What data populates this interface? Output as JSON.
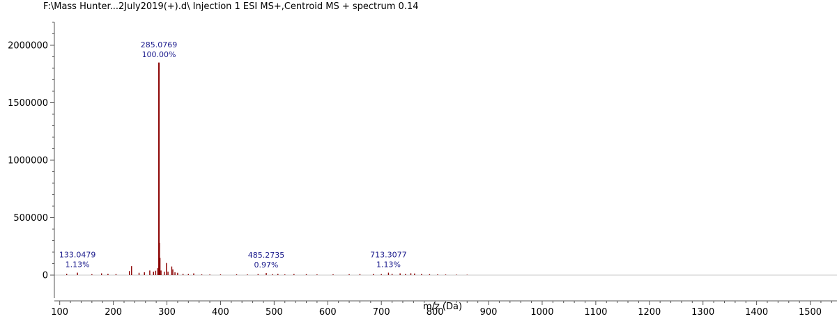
{
  "title": "F:\\Mass Hunter...2July2019(+).d\\ Injection 1 ESI MS+,Centroid MS + spectrum 0.14",
  "chart_data": {
    "type": "bar",
    "xlabel": "m/z (Da)",
    "ylabel": "",
    "xlim": [
      90,
      1550
    ],
    "ylim": [
      -200000,
      2200000
    ],
    "x_ticks": [
      100,
      200,
      300,
      400,
      500,
      600,
      700,
      800,
      900,
      1000,
      1100,
      1200,
      1300,
      1400,
      1500
    ],
    "y_ticks": [
      0,
      500000,
      1000000,
      1500000,
      2000000
    ],
    "bar_color": "#8b0000",
    "annotation_color": "#1a1a8c",
    "peaks": [
      {
        "x": 113,
        "y": 12000
      },
      {
        "x": 133.0479,
        "y": 21000
      },
      {
        "x": 160,
        "y": 8000
      },
      {
        "x": 178,
        "y": 15000
      },
      {
        "x": 190,
        "y": 12000
      },
      {
        "x": 205,
        "y": 9000
      },
      {
        "x": 230,
        "y": 35000
      },
      {
        "x": 234,
        "y": 78000
      },
      {
        "x": 248,
        "y": 20000
      },
      {
        "x": 258,
        "y": 25000
      },
      {
        "x": 268,
        "y": 40000
      },
      {
        "x": 275,
        "y": 30000
      },
      {
        "x": 279,
        "y": 38000
      },
      {
        "x": 283,
        "y": 60000
      },
      {
        "x": 285.0769,
        "y": 1850000
      },
      {
        "x": 286.1,
        "y": 280000
      },
      {
        "x": 287.1,
        "y": 150000
      },
      {
        "x": 289,
        "y": 40000
      },
      {
        "x": 295,
        "y": 30000
      },
      {
        "x": 299,
        "y": 105000
      },
      {
        "x": 302,
        "y": 30000
      },
      {
        "x": 309,
        "y": 75000
      },
      {
        "x": 311,
        "y": 50000
      },
      {
        "x": 315,
        "y": 25000
      },
      {
        "x": 320,
        "y": 20000
      },
      {
        "x": 330,
        "y": 12000
      },
      {
        "x": 340,
        "y": 10000
      },
      {
        "x": 350,
        "y": 15000
      },
      {
        "x": 365,
        "y": 6000
      },
      {
        "x": 380,
        "y": 5000
      },
      {
        "x": 400,
        "y": 6000
      },
      {
        "x": 430,
        "y": 7000
      },
      {
        "x": 450,
        "y": 6000
      },
      {
        "x": 470,
        "y": 9000
      },
      {
        "x": 485.2735,
        "y": 18000
      },
      {
        "x": 497,
        "y": 8000
      },
      {
        "x": 507,
        "y": 12000
      },
      {
        "x": 520,
        "y": 6000
      },
      {
        "x": 537,
        "y": 10000
      },
      {
        "x": 560,
        "y": 8000
      },
      {
        "x": 580,
        "y": 6000
      },
      {
        "x": 610,
        "y": 7000
      },
      {
        "x": 640,
        "y": 8000
      },
      {
        "x": 660,
        "y": 9000
      },
      {
        "x": 685,
        "y": 10000
      },
      {
        "x": 700,
        "y": 9000
      },
      {
        "x": 713.3077,
        "y": 21000
      },
      {
        "x": 720,
        "y": 12000
      },
      {
        "x": 735,
        "y": 15000
      },
      {
        "x": 745,
        "y": 10000
      },
      {
        "x": 755,
        "y": 16000
      },
      {
        "x": 762,
        "y": 14000
      },
      {
        "x": 775,
        "y": 10000
      },
      {
        "x": 790,
        "y": 8000
      },
      {
        "x": 805,
        "y": 6000
      },
      {
        "x": 820,
        "y": 5000
      },
      {
        "x": 840,
        "y": 4000
      },
      {
        "x": 860,
        "y": 3000
      }
    ],
    "annotations": [
      {
        "mz": "285.0769",
        "pct": "100.00%",
        "x": 285.0769,
        "y": 1850000
      },
      {
        "mz": "133.0479",
        "pct": "1.13%",
        "x": 133.0479,
        "y": 21000
      },
      {
        "mz": "485.2735",
        "pct": "0.97%",
        "x": 485.2735,
        "y": 18000
      },
      {
        "mz": "713.3077",
        "pct": "1.13%",
        "x": 713.3077,
        "y": 21000
      }
    ]
  }
}
